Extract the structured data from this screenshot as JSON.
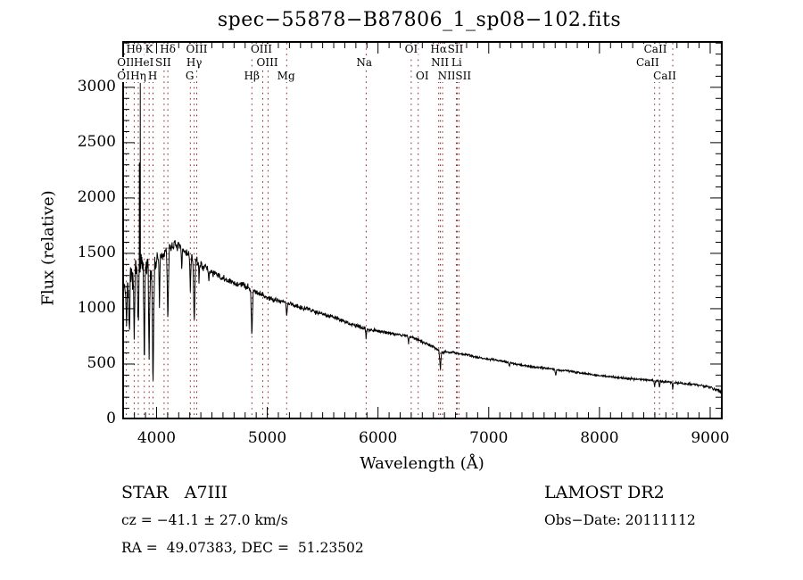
{
  "title": "spec−55878−B87806_1_sp08−102.fits",
  "colors": {
    "curve": "#000000",
    "line_marker": "#8b2222",
    "frame": "#000000",
    "text": "#000000",
    "background": "#ffffff"
  },
  "axes": {
    "xlabel": "Wavelength (Å)",
    "ylabel": "Flux (relative)",
    "x_tick_labels": [
      "4000",
      "5000",
      "6000",
      "7000",
      "8000",
      "9000"
    ],
    "y_tick_labels": [
      "0",
      "500",
      "1000",
      "1500",
      "2000",
      "2500",
      "3000"
    ]
  },
  "footer": {
    "class_line": "STAR   A7III",
    "survey": "LAMOST DR2",
    "cz_line": "cz = −41.1 ± 27.0 km/s",
    "obs_date_line": "Obs−Date: 20111112",
    "radec_line": "RA =  49.07383, DEC =  51.23502"
  },
  "chart_data": {
    "type": "line",
    "title": "spec−55878−B87806_1_sp08−102.fits",
    "xlabel": "Wavelength (Å)",
    "ylabel": "Flux (relative)",
    "xlim": [
      3690,
      9113
    ],
    "ylim": [
      0,
      3418
    ],
    "x_ticks": [
      4000,
      5000,
      6000,
      7000,
      8000,
      9000
    ],
    "y_ticks": [
      0,
      500,
      1000,
      1500,
      2000,
      2500,
      3000
    ],
    "minor_tick_step_x": 100,
    "minor_tick_step_y": 100,
    "grid": false,
    "marker_wavelengths": [
      3727,
      3798,
      3835,
      3889,
      3933,
      3968,
      4068,
      4102,
      4305,
      4340,
      4363,
      4861,
      4959,
      5007,
      5175,
      5893,
      6300,
      6363,
      6548,
      6563,
      6583,
      6708,
      6716,
      6731,
      8498,
      8542,
      8662
    ],
    "spectral_line_labels": [
      {
        "text": "Hθ",
        "wavelength": 3798,
        "row": 1
      },
      {
        "text": "K",
        "wavelength": 3933,
        "row": 1
      },
      {
        "text": "Hδ",
        "wavelength": 4102,
        "row": 1
      },
      {
        "text": "OIII",
        "wavelength": 4363,
        "row": 1
      },
      {
        "text": "OIII",
        "wavelength": 4947,
        "row": 1
      },
      {
        "text": "OI",
        "wavelength": 6300,
        "row": 1
      },
      {
        "text": "Hα",
        "wavelength": 6548,
        "row": 1
      },
      {
        "text": "SII",
        "wavelength": 6700,
        "row": 1
      },
      {
        "text": "CaII",
        "wavelength": 8505,
        "row": 1
      },
      {
        "text": "OII",
        "wavelength": 3722,
        "row": 2
      },
      {
        "text": "HeI",
        "wavelength": 3885,
        "row": 2
      },
      {
        "text": "SII",
        "wavelength": 4060,
        "row": 2
      },
      {
        "text": "Hγ",
        "wavelength": 4340,
        "row": 2
      },
      {
        "text": "OIII",
        "wavelength": 5000,
        "row": 2
      },
      {
        "text": "Na",
        "wavelength": 5875,
        "row": 2
      },
      {
        "text": "NII",
        "wavelength": 6560,
        "row": 2
      },
      {
        "text": "Li",
        "wavelength": 6710,
        "row": 2
      },
      {
        "text": "CaII",
        "wavelength": 8435,
        "row": 2
      },
      {
        "text": "OII",
        "wavelength": 3722,
        "row": 3
      },
      {
        "text": "Hη",
        "wavelength": 3835,
        "row": 3
      },
      {
        "text": "H",
        "wavelength": 3965,
        "row": 3
      },
      {
        "text": "G",
        "wavelength": 4300,
        "row": 3
      },
      {
        "text": "Hβ",
        "wavelength": 4860,
        "row": 3
      },
      {
        "text": "Mg",
        "wavelength": 5170,
        "row": 3
      },
      {
        "text": "OI",
        "wavelength": 6400,
        "row": 3
      },
      {
        "text": "NII",
        "wavelength": 6620,
        "row": 3
      },
      {
        "text": "SII",
        "wavelength": 6770,
        "row": 3
      },
      {
        "text": "CaII",
        "wavelength": 8590,
        "row": 3
      }
    ],
    "continuum": [
      [
        3690,
        1260
      ],
      [
        3730,
        1180
      ],
      [
        3780,
        1280
      ],
      [
        3830,
        1360
      ],
      [
        3880,
        1400
      ],
      [
        3930,
        1330
      ],
      [
        3970,
        1300
      ],
      [
        4000,
        1440
      ],
      [
        4080,
        1500
      ],
      [
        4150,
        1580
      ],
      [
        4220,
        1550
      ],
      [
        4300,
        1480
      ],
      [
        4400,
        1400
      ],
      [
        4500,
        1330
      ],
      [
        4600,
        1270
      ],
      [
        4700,
        1230
      ],
      [
        4800,
        1210
      ],
      [
        4900,
        1150
      ],
      [
        5000,
        1100
      ],
      [
        5100,
        1075
      ],
      [
        5200,
        1045
      ],
      [
        5300,
        1015
      ],
      [
        5400,
        985
      ],
      [
        5500,
        955
      ],
      [
        5600,
        925
      ],
      [
        5700,
        880
      ],
      [
        5800,
        845
      ],
      [
        5900,
        815
      ],
      [
        6000,
        800
      ],
      [
        6100,
        780
      ],
      [
        6200,
        765
      ],
      [
        6300,
        745
      ],
      [
        6400,
        700
      ],
      [
        6500,
        655
      ],
      [
        6563,
        615
      ],
      [
        6600,
        610
      ],
      [
        6700,
        600
      ],
      [
        6800,
        585
      ],
      [
        6900,
        560
      ],
      [
        7000,
        545
      ],
      [
        7100,
        530
      ],
      [
        7200,
        510
      ],
      [
        7300,
        490
      ],
      [
        7400,
        475
      ],
      [
        7500,
        465
      ],
      [
        7600,
        450
      ],
      [
        7700,
        440
      ],
      [
        7800,
        425
      ],
      [
        7900,
        410
      ],
      [
        8000,
        395
      ],
      [
        8100,
        385
      ],
      [
        8200,
        375
      ],
      [
        8300,
        365
      ],
      [
        8400,
        360
      ],
      [
        8500,
        350
      ],
      [
        8600,
        340
      ],
      [
        8700,
        330
      ],
      [
        8800,
        320
      ],
      [
        8900,
        310
      ],
      [
        9000,
        290
      ],
      [
        9050,
        270
      ],
      [
        9100,
        245
      ]
    ],
    "absorption_features": [
      {
        "wavelength": 3727,
        "depth": 380,
        "width": 10
      },
      {
        "wavelength": 3755,
        "depth": 620,
        "width": 9
      },
      {
        "wavelength": 3798,
        "depth": 680,
        "width": 10
      },
      {
        "wavelength": 3835,
        "depth": 560,
        "width": 10
      },
      {
        "wavelength": 3889,
        "depth": 1000,
        "width": 11
      },
      {
        "wavelength": 3933,
        "depth": 820,
        "width": 10
      },
      {
        "wavelength": 3968,
        "depth": 1060,
        "width": 12
      },
      {
        "wavelength": 4026,
        "depth": 460,
        "width": 8
      },
      {
        "wavelength": 4102,
        "depth": 650,
        "width": 13
      },
      {
        "wavelength": 4227,
        "depth": 220,
        "width": 8
      },
      {
        "wavelength": 4305,
        "depth": 330,
        "width": 10
      },
      {
        "wavelength": 4340,
        "depth": 650,
        "width": 13
      },
      {
        "wavelength": 4384,
        "depth": 180,
        "width": 8
      },
      {
        "wavelength": 4472,
        "depth": 120,
        "width": 8
      },
      {
        "wavelength": 4861,
        "depth": 440,
        "width": 13
      },
      {
        "wavelength": 5175,
        "depth": 115,
        "width": 11
      },
      {
        "wavelength": 5893,
        "depth": 80,
        "width": 10
      },
      {
        "wavelength": 6276,
        "depth": 60,
        "width": 8
      },
      {
        "wavelength": 6563,
        "depth": 160,
        "width": 14
      },
      {
        "wavelength": 7186,
        "depth": 40,
        "width": 10
      },
      {
        "wavelength": 7605,
        "depth": 45,
        "width": 12
      },
      {
        "wavelength": 8498,
        "depth": 55,
        "width": 9
      },
      {
        "wavelength": 8542,
        "depth": 65,
        "width": 9
      },
      {
        "wavelength": 8662,
        "depth": 65,
        "width": 9
      }
    ],
    "emission_spikes": [
      {
        "wavelength": 3845,
        "peak": 2320
      },
      {
        "wavelength": 3853,
        "peak": 3040
      }
    ],
    "noise_profile": [
      [
        3690,
        135
      ],
      [
        3990,
        135
      ],
      [
        4010,
        55
      ],
      [
        4400,
        40
      ],
      [
        4800,
        32
      ],
      [
        5200,
        26
      ],
      [
        5600,
        22
      ],
      [
        6000,
        18
      ],
      [
        6400,
        15
      ],
      [
        6800,
        13
      ],
      [
        7200,
        11
      ],
      [
        7600,
        10
      ],
      [
        8000,
        10
      ],
      [
        8600,
        11
      ],
      [
        8900,
        14
      ],
      [
        9040,
        22
      ],
      [
        9110,
        26
      ]
    ]
  }
}
